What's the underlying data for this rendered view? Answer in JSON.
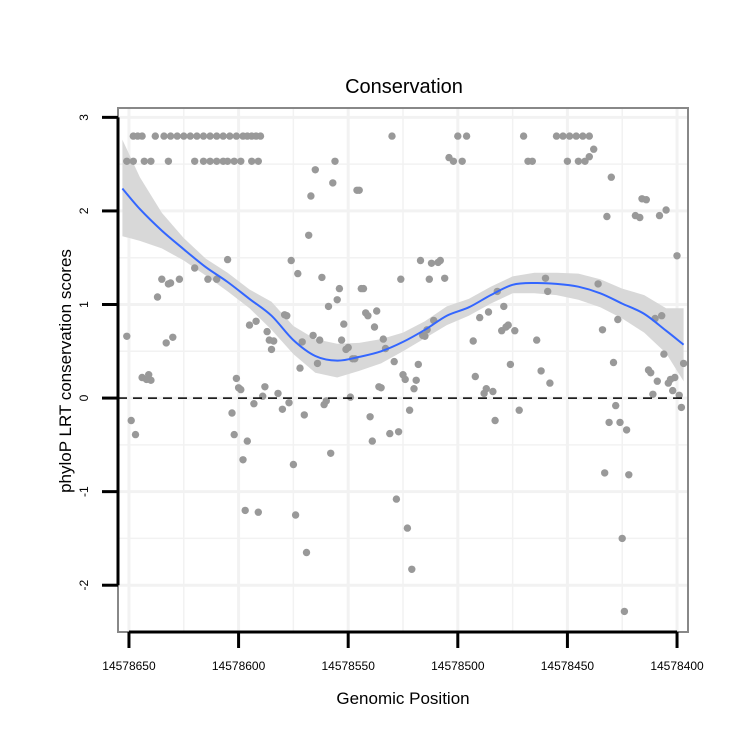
{
  "chart_data": {
    "type": "scatter",
    "title": "Conservation",
    "xlabel": "Genomic Position",
    "ylabel": "phyloP LRT conservation scores",
    "x_reversed": true,
    "xlim": [
      14578655,
      14578395
    ],
    "ylim": [
      -2.5,
      3.1
    ],
    "xticks": [
      14578650,
      14578600,
      14578550,
      14578500,
      14578450,
      14578400
    ],
    "yticks": [
      -2,
      -1,
      0,
      1,
      2,
      3
    ],
    "grid": true,
    "reference_line": {
      "y": 0,
      "style": "dashed"
    },
    "colors": {
      "points": "#999999",
      "smooth_line": "#3366FF",
      "ribbon": "#D6D6D6",
      "panel_border": "#888888",
      "grid": "#F2F2F2"
    },
    "points": [
      [
        14578648,
        2.8
      ],
      [
        14578646,
        2.8
      ],
      [
        14578644,
        2.8
      ],
      [
        14578638,
        2.8
      ],
      [
        14578634,
        2.8
      ],
      [
        14578631,
        2.8
      ],
      [
        14578628,
        2.8
      ],
      [
        14578625,
        2.8
      ],
      [
        14578622,
        2.8
      ],
      [
        14578619,
        2.8
      ],
      [
        14578616,
        2.8
      ],
      [
        14578613,
        2.8
      ],
      [
        14578610,
        2.8
      ],
      [
        14578607,
        2.8
      ],
      [
        14578604,
        2.8
      ],
      [
        14578601,
        2.8
      ],
      [
        14578598,
        2.8
      ],
      [
        14578596,
        2.8
      ],
      [
        14578594,
        2.8
      ],
      [
        14578592,
        2.8
      ],
      [
        14578590,
        2.8
      ],
      [
        14578651,
        2.53
      ],
      [
        14578648,
        2.53
      ],
      [
        14578643,
        2.53
      ],
      [
        14578640,
        2.53
      ],
      [
        14578632,
        2.53
      ],
      [
        14578620,
        2.53
      ],
      [
        14578616,
        2.53
      ],
      [
        14578613,
        2.53
      ],
      [
        14578610,
        2.53
      ],
      [
        14578607,
        2.53
      ],
      [
        14578605,
        2.53
      ],
      [
        14578602,
        2.53
      ],
      [
        14578599,
        2.53
      ],
      [
        14578594,
        2.53
      ],
      [
        14578591,
        2.53
      ],
      [
        14578651,
        0.66
      ],
      [
        14578649,
        -0.24
      ],
      [
        14578647,
        -0.39
      ],
      [
        14578644,
        0.22
      ],
      [
        14578642,
        0.2
      ],
      [
        14578641,
        0.25
      ],
      [
        14578640,
        0.19
      ],
      [
        14578637,
        1.08
      ],
      [
        14578635,
        1.27
      ],
      [
        14578633,
        0.59
      ],
      [
        14578632,
        1.22
      ],
      [
        14578631,
        1.23
      ],
      [
        14578630,
        0.65
      ],
      [
        14578627,
        1.27
      ],
      [
        14578620,
        1.39
      ],
      [
        14578614,
        1.27
      ],
      [
        14578610,
        1.27
      ],
      [
        14578605,
        1.48
      ],
      [
        14578603,
        -0.16
      ],
      [
        14578602,
        -0.39
      ],
      [
        14578601,
        0.21
      ],
      [
        14578600,
        0.11
      ],
      [
        14578599,
        0.09
      ],
      [
        14578598,
        -0.66
      ],
      [
        14578597,
        -1.2
      ],
      [
        14578596,
        -0.46
      ],
      [
        14578595,
        0.78
      ],
      [
        14578593,
        -0.06
      ],
      [
        14578592,
        0.82
      ],
      [
        14578591,
        -1.22
      ],
      [
        14578589,
        0.02
      ],
      [
        14578588,
        0.12
      ],
      [
        14578587,
        0.71
      ],
      [
        14578586,
        0.62
      ],
      [
        14578585,
        0.52
      ],
      [
        14578584,
        0.61
      ],
      [
        14578582,
        0.05
      ],
      [
        14578580,
        -0.12
      ],
      [
        14578579,
        0.89
      ],
      [
        14578578,
        0.88
      ],
      [
        14578577,
        -0.05
      ],
      [
        14578576,
        1.47
      ],
      [
        14578575,
        -0.71
      ],
      [
        14578574,
        -1.25
      ],
      [
        14578573,
        1.33
      ],
      [
        14578572,
        0.32
      ],
      [
        14578571,
        0.6
      ],
      [
        14578570,
        -0.18
      ],
      [
        14578569,
        -1.65
      ],
      [
        14578568,
        1.74
      ],
      [
        14578567,
        2.16
      ],
      [
        14578566,
        0.67
      ],
      [
        14578565,
        2.44
      ],
      [
        14578564,
        0.37
      ],
      [
        14578563,
        0.62
      ],
      [
        14578562,
        1.29
      ],
      [
        14578561,
        -0.07
      ],
      [
        14578560,
        -0.03
      ],
      [
        14578559,
        0.98
      ],
      [
        14578558,
        -0.59
      ],
      [
        14578557,
        2.3
      ],
      [
        14578556,
        2.53
      ],
      [
        14578555,
        1.05
      ],
      [
        14578554,
        1.17
      ],
      [
        14578553,
        0.62
      ],
      [
        14578552,
        0.79
      ],
      [
        14578551,
        0.52
      ],
      [
        14578550,
        0.54
      ],
      [
        14578549,
        0.01
      ],
      [
        14578548,
        0.42
      ],
      [
        14578547,
        0.42
      ],
      [
        14578546,
        2.22
      ],
      [
        14578545,
        2.22
      ],
      [
        14578544,
        1.17
      ],
      [
        14578543,
        1.17
      ],
      [
        14578542,
        0.91
      ],
      [
        14578541,
        0.88
      ],
      [
        14578540,
        -0.2
      ],
      [
        14578539,
        -0.46
      ],
      [
        14578538,
        0.76
      ],
      [
        14578537,
        0.93
      ],
      [
        14578536,
        0.12
      ],
      [
        14578535,
        0.11
      ],
      [
        14578534,
        0.63
      ],
      [
        14578533,
        0.53
      ],
      [
        14578531,
        -0.38
      ],
      [
        14578530,
        2.8
      ],
      [
        14578529,
        0.39
      ],
      [
        14578528,
        -1.08
      ],
      [
        14578527,
        -0.36
      ],
      [
        14578526,
        1.27
      ],
      [
        14578525,
        0.25
      ],
      [
        14578524,
        0.2
      ],
      [
        14578523,
        -1.39
      ],
      [
        14578522,
        -0.13
      ],
      [
        14578521,
        -1.83
      ],
      [
        14578520,
        0.1
      ],
      [
        14578519,
        0.19
      ],
      [
        14578518,
        0.36
      ],
      [
        14578517,
        1.47
      ],
      [
        14578516,
        0.67
      ],
      [
        14578515,
        0.66
      ],
      [
        14578514,
        0.73
      ],
      [
        14578513,
        1.27
      ],
      [
        14578512,
        1.44
      ],
      [
        14578511,
        0.83
      ],
      [
        14578509,
        1.45
      ],
      [
        14578508,
        1.47
      ],
      [
        14578506,
        1.28
      ],
      [
        14578504,
        2.57
      ],
      [
        14578502,
        2.53
      ],
      [
        14578500,
        2.8
      ],
      [
        14578498,
        2.53
      ],
      [
        14578496,
        2.8
      ],
      [
        14578493,
        0.61
      ],
      [
        14578492,
        0.23
      ],
      [
        14578490,
        0.86
      ],
      [
        14578488,
        0.05
      ],
      [
        14578487,
        0.1
      ],
      [
        14578486,
        0.92
      ],
      [
        14578484,
        0.07
      ],
      [
        14578483,
        -0.24
      ],
      [
        14578482,
        1.14
      ],
      [
        14578480,
        0.72
      ],
      [
        14578479,
        0.98
      ],
      [
        14578478,
        0.76
      ],
      [
        14578477,
        0.78
      ],
      [
        14578476,
        0.36
      ],
      [
        14578474,
        0.72
      ],
      [
        14578472,
        -0.13
      ],
      [
        14578470,
        2.8
      ],
      [
        14578468,
        2.53
      ],
      [
        14578466,
        2.53
      ],
      [
        14578464,
        0.62
      ],
      [
        14578462,
        0.29
      ],
      [
        14578460,
        1.28
      ],
      [
        14578459,
        1.14
      ],
      [
        14578458,
        0.16
      ],
      [
        14578455,
        2.8
      ],
      [
        14578452,
        2.8
      ],
      [
        14578449,
        2.8
      ],
      [
        14578446,
        2.8
      ],
      [
        14578443,
        2.8
      ],
      [
        14578440,
        2.8
      ],
      [
        14578450,
        2.53
      ],
      [
        14578445,
        2.53
      ],
      [
        14578442,
        2.53
      ],
      [
        14578440,
        2.58
      ],
      [
        14578438,
        2.66
      ],
      [
        14578436,
        1.22
      ],
      [
        14578434,
        0.73
      ],
      [
        14578433,
        -0.8
      ],
      [
        14578432,
        1.94
      ],
      [
        14578431,
        -0.26
      ],
      [
        14578430,
        2.36
      ],
      [
        14578429,
        0.38
      ],
      [
        14578428,
        -0.08
      ],
      [
        14578427,
        0.84
      ],
      [
        14578426,
        -0.26
      ],
      [
        14578425,
        -1.5
      ],
      [
        14578424,
        -2.28
      ],
      [
        14578423,
        -0.34
      ],
      [
        14578422,
        -0.82
      ],
      [
        14578419,
        1.95
      ],
      [
        14578417,
        1.93
      ],
      [
        14578416,
        2.13
      ],
      [
        14578414,
        2.12
      ],
      [
        14578413,
        0.3
      ],
      [
        14578412,
        0.27
      ],
      [
        14578411,
        0.04
      ],
      [
        14578410,
        0.85
      ],
      [
        14578409,
        0.18
      ],
      [
        14578408,
        1.95
      ],
      [
        14578407,
        0.88
      ],
      [
        14578406,
        0.47
      ],
      [
        14578405,
        2.01
      ],
      [
        14578404,
        0.16
      ],
      [
        14578403,
        0.2
      ],
      [
        14578402,
        0.08
      ],
      [
        14578401,
        0.22
      ],
      [
        14578400,
        1.52
      ],
      [
        14578399,
        0.03
      ],
      [
        14578398,
        -0.1
      ],
      [
        14578397,
        0.37
      ]
    ],
    "smooth": {
      "x": [
        14578653,
        14578645,
        14578635,
        14578625,
        14578615,
        14578605,
        14578595,
        14578585,
        14578575,
        14578565,
        14578555,
        14578545,
        14578535,
        14578525,
        14578515,
        14578505,
        14578495,
        14578485,
        14578475,
        14578465,
        14578455,
        14578445,
        14578435,
        14578425,
        14578415,
        14578405,
        14578397
      ],
      "y": [
        2.24,
        2.02,
        1.79,
        1.59,
        1.4,
        1.24,
        1.06,
        0.88,
        0.62,
        0.45,
        0.4,
        0.44,
        0.5,
        0.6,
        0.73,
        0.88,
        0.97,
        1.1,
        1.21,
        1.23,
        1.22,
        1.19,
        1.12,
        1.01,
        0.9,
        0.72,
        0.57
      ],
      "lower": [
        1.73,
        1.68,
        1.6,
        1.47,
        1.31,
        1.14,
        0.96,
        0.73,
        0.47,
        0.27,
        0.22,
        0.29,
        0.37,
        0.5,
        0.64,
        0.78,
        0.88,
        1.01,
        1.12,
        1.12,
        1.1,
        1.05,
        0.97,
        0.85,
        0.7,
        0.48,
        0.18
      ],
      "upper": [
        2.76,
        2.36,
        1.98,
        1.71,
        1.49,
        1.34,
        1.16,
        1.03,
        0.77,
        0.63,
        0.58,
        0.59,
        0.63,
        0.7,
        0.82,
        0.98,
        1.06,
        1.19,
        1.3,
        1.34,
        1.34,
        1.33,
        1.27,
        1.17,
        1.1,
        0.96,
        0.96
      ]
    }
  }
}
